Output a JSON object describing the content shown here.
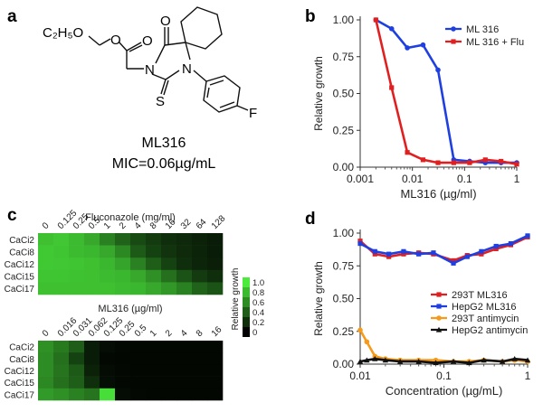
{
  "panels": {
    "a": {
      "letter": "a",
      "compound_name": "ML316",
      "mic_text": "MIC=0.06µg/mL",
      "atom_o_top": "O",
      "atom_o_ester1": "O",
      "atom_o_ester2": "O",
      "atom_n1": "N",
      "atom_n2": "N",
      "atom_s": "S",
      "atom_f": "F",
      "ethyl_group": "C₂H₅O"
    },
    "b": {
      "letter": "b"
    },
    "c": {
      "letter": "c"
    },
    "d": {
      "letter": "d"
    }
  },
  "colors": {
    "blue": "#1f3fe0",
    "red": "#e02020",
    "orange": "#f59a1a",
    "black": "#111111",
    "heat_low": "#000000",
    "heat_high": "#4cea3c"
  },
  "chart_data": [
    {
      "type": "line",
      "panel": "b",
      "xscale": "log",
      "xlabel": "ML316 (µg/ml)",
      "ylabel": "Relative growth",
      "xlim": [
        0.001,
        1
      ],
      "ylim": [
        0,
        1
      ],
      "xticks": [
        0.001,
        0.01,
        0.1,
        1
      ],
      "xtick_labels": [
        "0.001",
        "0.01",
        "0.1",
        "1"
      ],
      "yticks": [
        0,
        0.25,
        0.5,
        0.75,
        1
      ],
      "ytick_labels": [
        "0.00",
        "0.25",
        "0.50",
        "0.75",
        "1.00"
      ],
      "legend": "top-right",
      "series": [
        {
          "name": "ML 316",
          "color": "#1f3fe0",
          "marker": "circle",
          "x": [
            0.002,
            0.004,
            0.008,
            0.016,
            0.031,
            0.062,
            0.125,
            0.25,
            0.5,
            1
          ],
          "y": [
            1.0,
            0.94,
            0.81,
            0.83,
            0.66,
            0.05,
            0.04,
            0.03,
            0.03,
            0.03
          ]
        },
        {
          "name": "ML 316 + Flu",
          "color": "#e02020",
          "marker": "square",
          "x": [
            0.002,
            0.004,
            0.008,
            0.016,
            0.031,
            0.062,
            0.125,
            0.25,
            0.5,
            1
          ],
          "y": [
            1.0,
            0.54,
            0.1,
            0.05,
            0.03,
            0.03,
            0.03,
            0.05,
            0.04,
            0.02
          ]
        }
      ]
    },
    {
      "type": "heatmap",
      "panel": "c-top",
      "title": "Fluconazole (mg/ml)",
      "columns": [
        "0",
        "0.125",
        "0.25",
        "0.5",
        "1",
        "2",
        "4",
        "8",
        "16",
        "32",
        "64",
        "128"
      ],
      "rows": [
        "CaCi2",
        "CaCi8",
        "CaCi12",
        "CaCi15",
        "CaCi17"
      ],
      "values": [
        [
          0.82,
          0.85,
          0.8,
          0.72,
          0.55,
          0.42,
          0.32,
          0.25,
          0.2,
          0.17,
          0.14,
          0.12
        ],
        [
          0.86,
          0.84,
          0.8,
          0.78,
          0.72,
          0.58,
          0.38,
          0.28,
          0.22,
          0.18,
          0.15,
          0.12
        ],
        [
          0.86,
          0.85,
          0.84,
          0.82,
          0.78,
          0.7,
          0.55,
          0.4,
          0.28,
          0.2,
          0.16,
          0.13
        ],
        [
          0.84,
          0.84,
          0.83,
          0.82,
          0.8,
          0.78,
          0.72,
          0.62,
          0.48,
          0.35,
          0.25,
          0.2
        ],
        [
          0.82,
          0.82,
          0.82,
          0.82,
          0.82,
          0.8,
          0.78,
          0.72,
          0.65,
          0.55,
          0.42,
          0.35
        ]
      ]
    },
    {
      "type": "heatmap",
      "panel": "c-bottom",
      "title": "ML316 (µg/ml)",
      "columns": [
        "0",
        "0.016",
        "0.031",
        "0.062",
        "0.125",
        "0.25",
        "0.5",
        "1",
        "2",
        "4",
        "8",
        "16"
      ],
      "rows": [
        "CaCi2",
        "CaCi8",
        "CaCi12",
        "CaCi15",
        "CaCi17"
      ],
      "values": [
        [
          0.62,
          0.52,
          0.4,
          0.12,
          0.05,
          0.04,
          0.03,
          0.03,
          0.03,
          0.03,
          0.03,
          0.03
        ],
        [
          0.6,
          0.48,
          0.28,
          0.12,
          0.04,
          0.03,
          0.03,
          0.03,
          0.03,
          0.03,
          0.03,
          0.03
        ],
        [
          0.6,
          0.5,
          0.38,
          0.14,
          0.05,
          0.04,
          0.03,
          0.03,
          0.03,
          0.03,
          0.03,
          0.03
        ],
        [
          0.58,
          0.48,
          0.4,
          0.2,
          0.06,
          0.04,
          0.03,
          0.03,
          0.03,
          0.03,
          0.03,
          0.03
        ],
        [
          0.66,
          0.62,
          0.55,
          0.5,
          0.95,
          0.05,
          0.04,
          0.03,
          0.03,
          0.03,
          0.03,
          0.03
        ]
      ]
    },
    {
      "type": "colorbar",
      "panel": "c-legend",
      "label": "Relative growth",
      "ticks": [
        "1.0",
        "0.8",
        "0.6",
        "0.4",
        "0.2",
        "0"
      ],
      "tick_values": [
        1.0,
        0.8,
        0.6,
        0.4,
        0.2,
        0.0
      ]
    },
    {
      "type": "line",
      "panel": "d",
      "xscale": "log",
      "xlabel": "Concentration (µg/mL)",
      "ylabel": "Relative growth",
      "xlim": [
        0.01,
        1
      ],
      "ylim": [
        0,
        1
      ],
      "xticks": [
        0.01,
        0.1,
        1
      ],
      "xtick_labels": [
        "0.01",
        "0.1",
        "1"
      ],
      "yticks": [
        0,
        0.25,
        0.5,
        0.75,
        1
      ],
      "ytick_labels": [
        "0.00",
        "0.25",
        "0.50",
        "0.75",
        "1.00"
      ],
      "legend": "lower-right",
      "series": [
        {
          "name": "293T ML316",
          "color": "#e02020",
          "marker": "square",
          "x": [
            0.01,
            0.015,
            0.022,
            0.033,
            0.05,
            0.075,
            0.13,
            0.19,
            0.28,
            0.42,
            0.63,
            1.0
          ],
          "y": [
            0.94,
            0.84,
            0.82,
            0.84,
            0.85,
            0.84,
            0.79,
            0.83,
            0.84,
            0.88,
            0.91,
            0.97
          ]
        },
        {
          "name": "HepG2 ML316",
          "color": "#1f3fe0",
          "marker": "square",
          "x": [
            0.01,
            0.015,
            0.022,
            0.033,
            0.05,
            0.075,
            0.13,
            0.19,
            0.28,
            0.42,
            0.63,
            1.0
          ],
          "y": [
            0.92,
            0.86,
            0.84,
            0.86,
            0.84,
            0.85,
            0.77,
            0.82,
            0.86,
            0.9,
            0.92,
            0.98
          ]
        },
        {
          "name": "293T antimycin",
          "color": "#f59a1a",
          "marker": "circle",
          "x": [
            0.01,
            0.012,
            0.015,
            0.02,
            0.03,
            0.05,
            0.08,
            0.13,
            0.2,
            0.3,
            0.5,
            0.7,
            1.0
          ],
          "y": [
            0.26,
            0.17,
            0.06,
            0.04,
            0.03,
            0.03,
            0.03,
            0.02,
            0.02,
            0.03,
            0.02,
            0.03,
            0.02
          ]
        },
        {
          "name": "HepG2 antimycin",
          "color": "#111111",
          "marker": "triangle",
          "x": [
            0.01,
            0.012,
            0.015,
            0.02,
            0.03,
            0.05,
            0.08,
            0.13,
            0.2,
            0.3,
            0.5,
            0.7,
            1.0
          ],
          "y": [
            0.02,
            0.03,
            0.04,
            0.03,
            0.02,
            0.02,
            0.01,
            0.02,
            0.01,
            0.03,
            0.02,
            0.04,
            0.03
          ]
        }
      ]
    }
  ]
}
